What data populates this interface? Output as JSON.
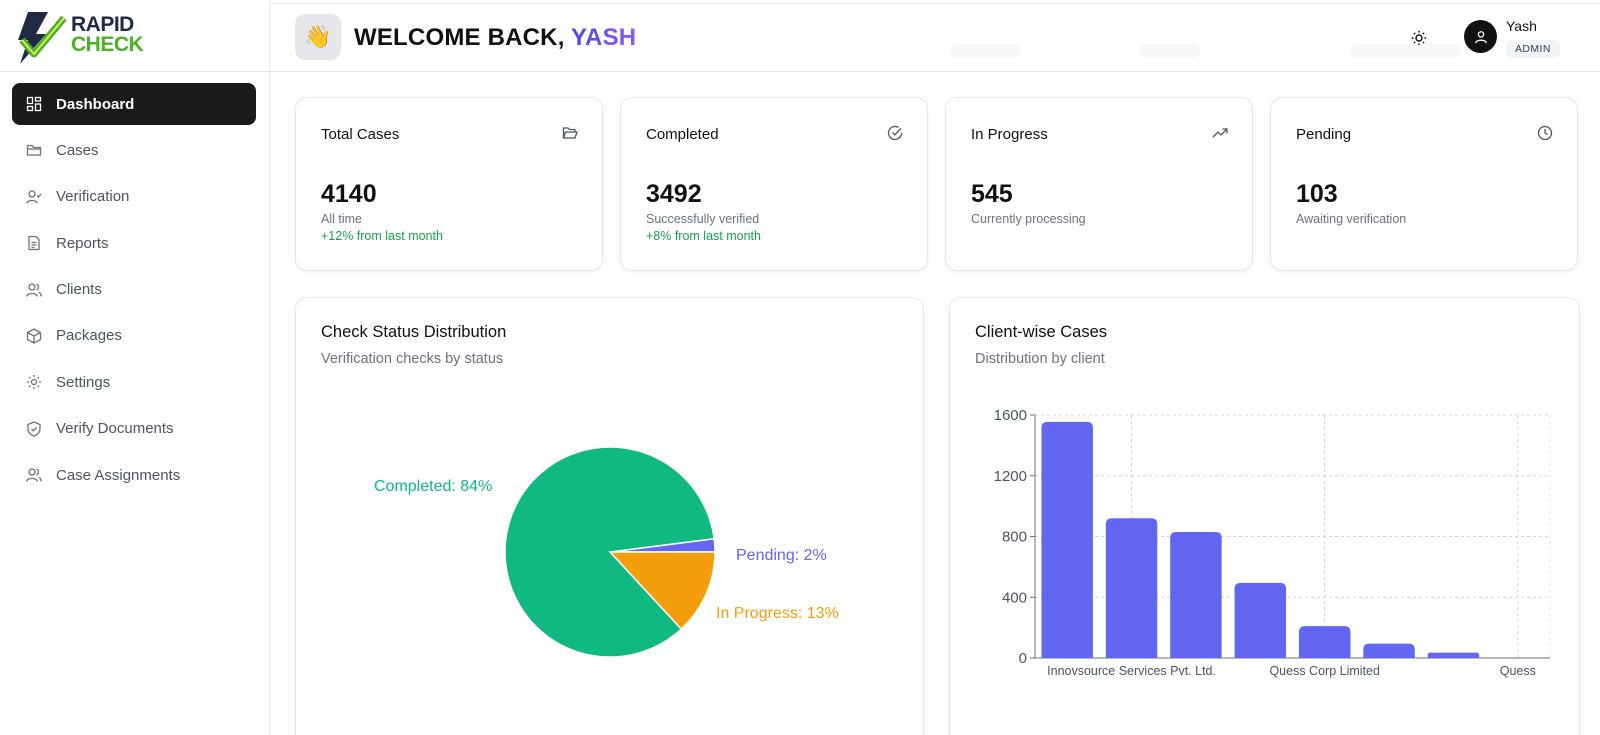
{
  "brand": {
    "line1": "RAPID",
    "line2": "CHECK"
  },
  "sidebar": {
    "items": [
      {
        "label": "Dashboard",
        "icon": "dashboard-icon",
        "active": true
      },
      {
        "label": "Cases",
        "icon": "folder-icon"
      },
      {
        "label": "Verification",
        "icon": "user-check-icon"
      },
      {
        "label": "Reports",
        "icon": "file-text-icon"
      },
      {
        "label": "Clients",
        "icon": "users-icon"
      },
      {
        "label": "Packages",
        "icon": "package-icon"
      },
      {
        "label": "Settings",
        "icon": "gear-icon"
      },
      {
        "label": "Verify Documents",
        "icon": "shield-check-icon"
      },
      {
        "label": "Case Assignments",
        "icon": "users-icon"
      }
    ]
  },
  "header": {
    "wave_icon": "👋",
    "welcome_prefix": "WELCOME BACK, ",
    "user_first": "YASH",
    "user_name": "Yash",
    "role": "ADMIN"
  },
  "stats": [
    {
      "title": "Total Cases",
      "value": "4140",
      "sub": "All time",
      "trend": "+12% from last month",
      "icon": "folder-open-icon"
    },
    {
      "title": "Completed",
      "value": "3492",
      "sub": "Successfully verified",
      "trend": "+8% from last month",
      "icon": "check-circle-icon"
    },
    {
      "title": "In Progress",
      "value": "545",
      "sub": "Currently processing",
      "trend": "",
      "icon": "trending-up-icon"
    },
    {
      "title": "Pending",
      "value": "103",
      "sub": "Awaiting verification",
      "trend": "",
      "icon": "clock-icon"
    }
  ],
  "status_chart": {
    "title": "Check Status Distribution",
    "subtitle": "Verification checks by status"
  },
  "client_chart": {
    "title": "Client-wise Cases",
    "subtitle": "Distribution by client"
  },
  "colors": {
    "completed": "#10b981",
    "in_progress": "#f59e0b",
    "pending": "#6366f1",
    "bar": "#6366f1",
    "trend": "#16a34a"
  },
  "chart_data": [
    {
      "type": "pie",
      "slices": [
        {
          "label": "Completed",
          "value": 84,
          "display": "Completed: 84%",
          "color": "#10b981"
        },
        {
          "label": "In Progress",
          "value": 13,
          "display": "In Progress: 13%",
          "color": "#f59e0b"
        },
        {
          "label": "Pending",
          "value": 2,
          "display": "Pending: 2%",
          "color": "#6366f1"
        }
      ]
    },
    {
      "type": "bar",
      "categories": [
        "",
        "Innovsource Services Pvt. Ltd.",
        "",
        "",
        "Quess Corp Limited",
        "",
        "",
        "Quess"
      ],
      "values": [
        1555,
        920,
        830,
        495,
        210,
        95,
        35,
        0
      ],
      "ylim": [
        0,
        1600
      ],
      "yticks": [
        0,
        400,
        800,
        1200,
        1600
      ],
      "grid": true,
      "color": "#6366f1"
    }
  ]
}
